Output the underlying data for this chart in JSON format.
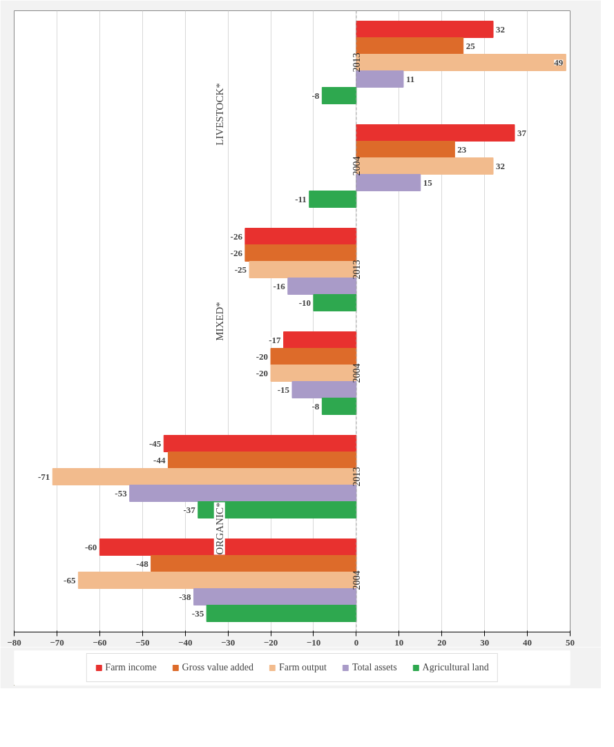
{
  "chart_data": {
    "type": "bar",
    "orientation": "horizontal",
    "categories": [
      "2013",
      "2004",
      "2013",
      "2004",
      "2013",
      "2004"
    ],
    "series": [
      {
        "name": "Farm income",
        "color": "#e8312f",
        "values": [
          32,
          37,
          -26,
          -17,
          -45,
          -60
        ]
      },
      {
        "name": "Gross value added",
        "color": "#dd6b2a",
        "values": [
          25,
          23,
          -26,
          -20,
          -44,
          -48
        ]
      },
      {
        "name": "Farm output",
        "color": "#f2bb8d",
        "values": [
          49,
          32,
          -25,
          -20,
          -71,
          -65
        ]
      },
      {
        "name": "Total assets",
        "color": "#a99bc8",
        "values": [
          11,
          15,
          -16,
          -15,
          -53,
          -38
        ]
      },
      {
        "name": "Agricultural land",
        "color": "#2ea84f",
        "values": [
          -8,
          -11,
          -10,
          -8,
          -37,
          -35
        ]
      }
    ],
    "annotations": [
      "LIVESTOCK*",
      "MIXED*",
      "ORGANIC*"
    ],
    "xlim": [
      -80,
      50
    ],
    "xticks": [
      -80,
      -70,
      -60,
      -50,
      -40,
      -30,
      -20,
      -10,
      0,
      10,
      20,
      30,
      40,
      50
    ],
    "ref_lines": [
      {
        "axis": "x",
        "value": 0,
        "color": "#a0a0a0",
        "line_style": "dashed"
      }
    ],
    "data_labels": true,
    "grid": "x",
    "legend": "bottom"
  }
}
